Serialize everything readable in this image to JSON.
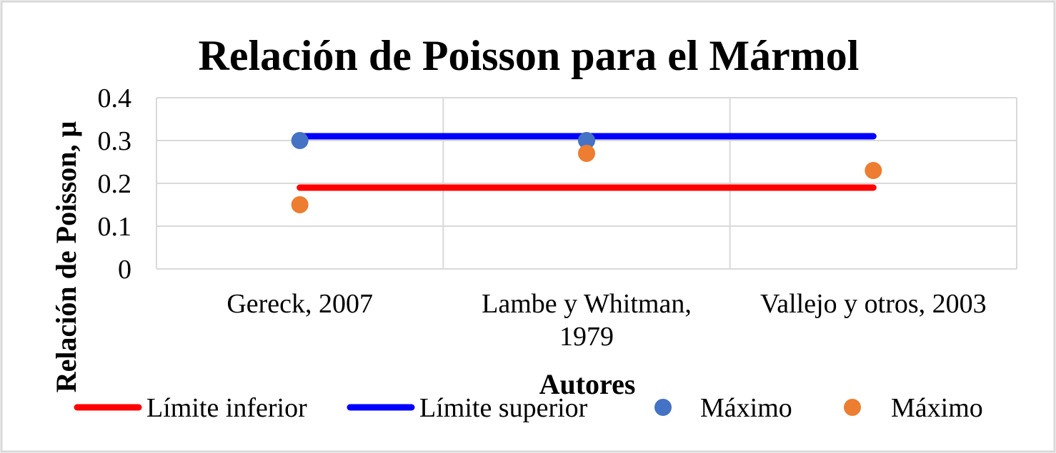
{
  "chart_data": {
    "type": "scatter",
    "title": "Relación de Poisson para el Mármol",
    "xlabel": "Autores",
    "ylabel": "Relación de Poisson, μ",
    "categories": [
      [
        "Gereck, 2007"
      ],
      [
        "Lambe y Whitman,",
        "1979"
      ],
      [
        "Vallejo y otros, 2003"
      ]
    ],
    "ylim": [
      0,
      0.4
    ],
    "yticks": [
      "0",
      "0.1",
      "0.2",
      "0.3",
      "0.4"
    ],
    "grid": true,
    "legend_position": "bottom",
    "series": [
      {
        "name": "Límite  inferior",
        "kind": "line",
        "values": [
          0.19,
          0.19,
          0.19
        ],
        "color": "#ff0000"
      },
      {
        "name": "Límite  superior",
        "kind": "line",
        "values": [
          0.31,
          0.31,
          0.31
        ],
        "color": "#0000ff"
      },
      {
        "name": "Máximo",
        "kind": "marker",
        "values": [
          0.3,
          0.3,
          null
        ],
        "color": "#4472c4"
      },
      {
        "name": "Máximo",
        "kind": "marker",
        "values": [
          0.15,
          0.27,
          0.23
        ],
        "color": "#ed7d31"
      }
    ]
  }
}
